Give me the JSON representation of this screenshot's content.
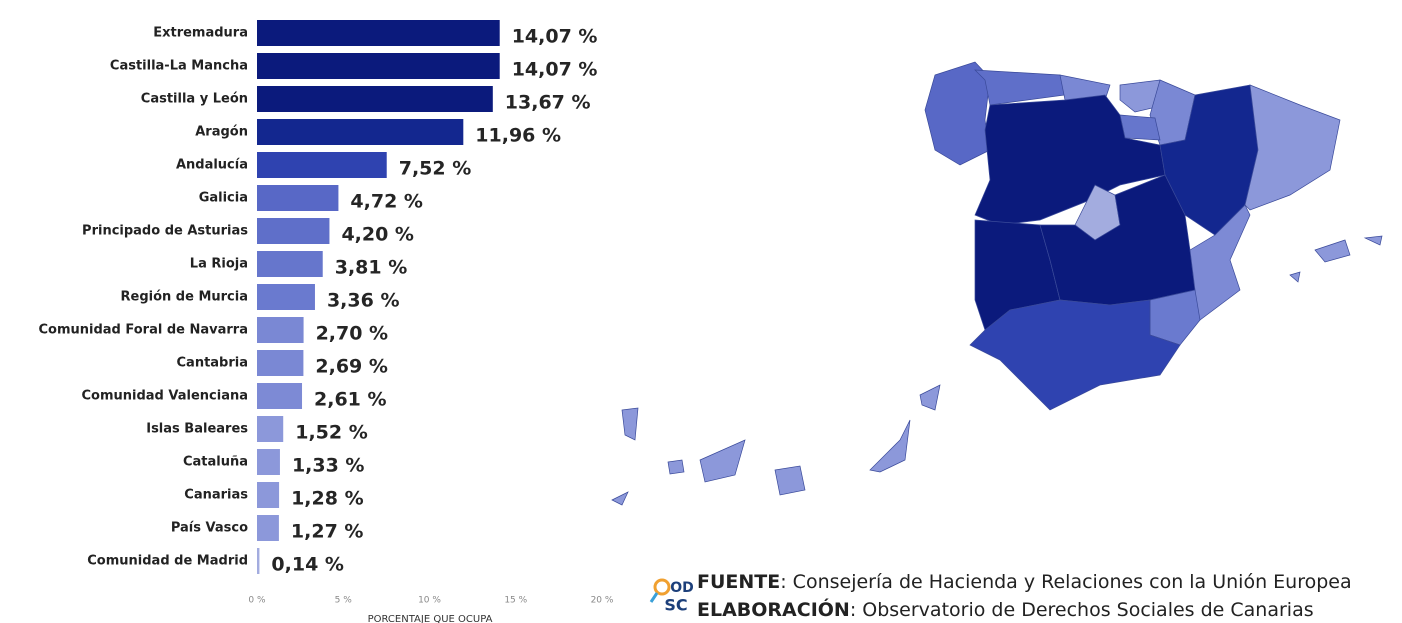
{
  "chart_data": {
    "type": "bar",
    "orientation": "horizontal",
    "categories": [
      "Extremadura",
      "Castilla-La Mancha",
      "Castilla y León",
      "Aragón",
      "Andalucía",
      "Galicia",
      "Principado de Asturias",
      "La Rioja",
      "Región de Murcia",
      "Comunidad Foral de Navarra",
      "Cantabria",
      "Comunidad Valenciana",
      "Islas Baleares",
      "Cataluña",
      "Canarias",
      "País Vasco",
      "Comunidad de Madrid"
    ],
    "values": [
      14.07,
      14.07,
      13.67,
      11.96,
      7.52,
      4.72,
      4.2,
      3.81,
      3.36,
      2.7,
      2.69,
      2.61,
      1.52,
      1.33,
      1.28,
      1.27,
      0.14
    ],
    "value_labels": [
      "14,07 %",
      "14,07 %",
      "13,67 %",
      "11,96 %",
      "7,52 %",
      "4,72 %",
      "4,20 %",
      "3,81 %",
      "3,36 %",
      "2,70 %",
      "2,69 %",
      "2,61 %",
      "1,52 %",
      "1,33 %",
      "1,28 %",
      "1,27 %",
      "0,14 %"
    ],
    "colors": [
      "#0b1a7c",
      "#0b1a7c",
      "#0b1a7c",
      "#13278f",
      "#2f43b0",
      "#5868c6",
      "#5f6fc9",
      "#6676cc",
      "#6a7acf",
      "#7a88d4",
      "#7a88d4",
      "#7d8ad5",
      "#8c98da",
      "#8c98da",
      "#8c98da",
      "#8c98da",
      "#a3acdf"
    ],
    "xlim": [
      0,
      20
    ],
    "xticks": [
      {
        "value": 0,
        "label": "0 %"
      },
      {
        "value": 5,
        "label": "5 %"
      },
      {
        "value": 10,
        "label": "10 %"
      },
      {
        "value": 15,
        "label": "15 %"
      },
      {
        "value": 20,
        "label": "20 %"
      }
    ],
    "xlabel": "PORCENTAJE QUE OCUPA"
  },
  "footer": {
    "source_label": "FUENTE",
    "source_text": ": Consejería de Hacienda y Relaciones con la Unión Europea",
    "credit_label": "ELABORACIÓN",
    "credit_text": ": Observatorio de Derechos Sociales de Canarias",
    "logo_top": "OD",
    "logo_bottom": "SC"
  }
}
